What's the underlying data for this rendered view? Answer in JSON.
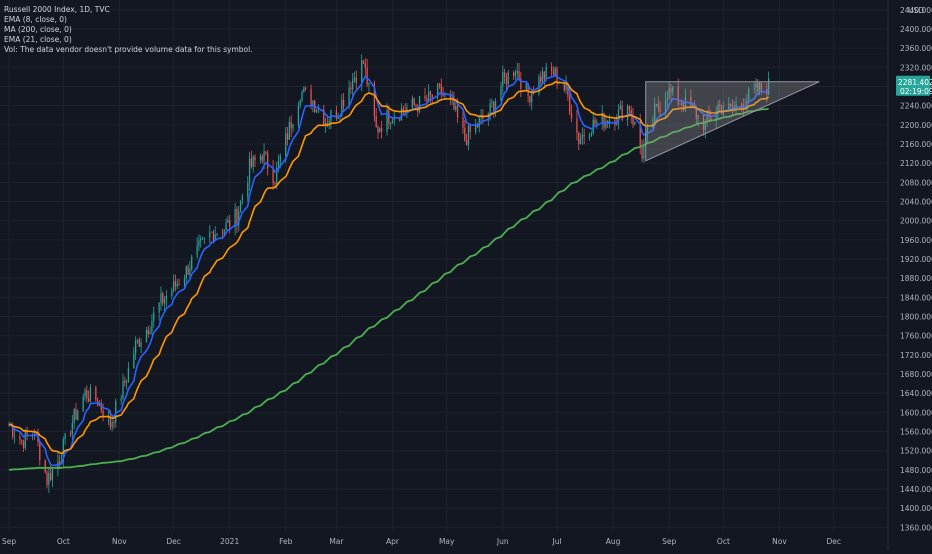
{
  "header": {
    "symbol": "Russell 2000 Index, 1D, TVC",
    "indicators": [
      "EMA (8, close, 0)",
      "MA (200, close, 0)",
      "EMA (21, close, 0)"
    ],
    "volume_note": "Vol: The data vendor doesn't provide volume data for this symbol."
  },
  "colors": {
    "background": "#131722",
    "grid": "#1e222d",
    "axis_text": "#b2b5be",
    "up_candle": "#26a69a",
    "down_candle": "#ef5350",
    "ema8": "#2962ff",
    "ma200": "#4caf50",
    "ema21": "#ff9800",
    "triangle_fill": "rgba(150,150,150,0.35)",
    "triangle_stroke": "#9598a1",
    "price_tag": "#26a69a"
  },
  "chart_data": {
    "type": "candlestick",
    "title": "Russell 2000 Index, 1D, TVC",
    "currency_label": "USD",
    "ylim": [
      1340,
      2450
    ],
    "y_ticks": [
      "2440.0000",
      "2400.0000",
      "2360.0000",
      "2320.0000",
      "2280.0000",
      "2240.0000",
      "2200.0000",
      "2160.0000",
      "2120.0000",
      "2080.0000",
      "2040.0000",
      "2000.0000",
      "1960.0000",
      "1920.0000",
      "1880.0000",
      "1840.0000",
      "1800.0000",
      "1760.0000",
      "1720.0000",
      "1680.0000",
      "1640.0000",
      "1600.0000",
      "1560.0000",
      "1520.0000",
      "1480.0000",
      "1440.0000",
      "1400.0000",
      "1360.0000"
    ],
    "x_ticks": [
      "Sep",
      "Oct",
      "Nov",
      "Dec",
      "2021",
      "Feb",
      "Mar",
      "Apr",
      "May",
      "Jun",
      "Jul",
      "Aug",
      "Sep",
      "Oct",
      "Nov",
      "Dec"
    ],
    "last_price": "2281.4022",
    "countdown": "02:19:09",
    "close_series": [
      {
        "x": "2020-09-01",
        "y": 1575
      },
      {
        "x": "2020-09-08",
        "y": 1540
      },
      {
        "x": "2020-09-15",
        "y": 1560
      },
      {
        "x": "2020-09-22",
        "y": 1460
      },
      {
        "x": "2020-09-29",
        "y": 1505
      },
      {
        "x": "2020-10-06",
        "y": 1580
      },
      {
        "x": "2020-10-13",
        "y": 1640
      },
      {
        "x": "2020-10-20",
        "y": 1625
      },
      {
        "x": "2020-10-27",
        "y": 1575
      },
      {
        "x": "2020-11-03",
        "y": 1650
      },
      {
        "x": "2020-11-10",
        "y": 1740
      },
      {
        "x": "2020-11-17",
        "y": 1780
      },
      {
        "x": "2020-11-24",
        "y": 1830
      },
      {
        "x": "2020-12-01",
        "y": 1860
      },
      {
        "x": "2020-12-08",
        "y": 1895
      },
      {
        "x": "2020-12-15",
        "y": 1940
      },
      {
        "x": "2020-12-22",
        "y": 1975
      },
      {
        "x": "2020-12-29",
        "y": 1985
      },
      {
        "x": "2021-01-05",
        "y": 2010
      },
      {
        "x": "2021-01-12",
        "y": 2110
      },
      {
        "x": "2021-01-19",
        "y": 2140
      },
      {
        "x": "2021-01-26",
        "y": 2090
      },
      {
        "x": "2021-02-02",
        "y": 2180
      },
      {
        "x": "2021-02-09",
        "y": 2270
      },
      {
        "x": "2021-02-16",
        "y": 2250
      },
      {
        "x": "2021-02-23",
        "y": 2210
      },
      {
        "x": "2021-03-02",
        "y": 2230
      },
      {
        "x": "2021-03-09",
        "y": 2290
      },
      {
        "x": "2021-03-16",
        "y": 2330
      },
      {
        "x": "2021-03-23",
        "y": 2190
      },
      {
        "x": "2021-03-30",
        "y": 2220
      },
      {
        "x": "2021-04-06",
        "y": 2230
      },
      {
        "x": "2021-04-13",
        "y": 2240
      },
      {
        "x": "2021-04-20",
        "y": 2250
      },
      {
        "x": "2021-04-27",
        "y": 2270
      },
      {
        "x": "2021-05-04",
        "y": 2240
      },
      {
        "x": "2021-05-11",
        "y": 2170
      },
      {
        "x": "2021-05-18",
        "y": 2200
      },
      {
        "x": "2021-05-25",
        "y": 2230
      },
      {
        "x": "2021-06-01",
        "y": 2290
      },
      {
        "x": "2021-06-08",
        "y": 2320
      },
      {
        "x": "2021-06-15",
        "y": 2260
      },
      {
        "x": "2021-06-22",
        "y": 2300
      },
      {
        "x": "2021-06-29",
        "y": 2310
      },
      {
        "x": "2021-07-06",
        "y": 2270
      },
      {
        "x": "2021-07-13",
        "y": 2170
      },
      {
        "x": "2021-07-20",
        "y": 2200
      },
      {
        "x": "2021-07-27",
        "y": 2210
      },
      {
        "x": "2021-08-03",
        "y": 2220
      },
      {
        "x": "2021-08-10",
        "y": 2240
      },
      {
        "x": "2021-08-17",
        "y": 2140
      },
      {
        "x": "2021-08-24",
        "y": 2225
      },
      {
        "x": "2021-08-31",
        "y": 2270
      },
      {
        "x": "2021-09-07",
        "y": 2250
      },
      {
        "x": "2021-09-14",
        "y": 2230
      },
      {
        "x": "2021-09-21",
        "y": 2200
      },
      {
        "x": "2021-09-28",
        "y": 2240
      },
      {
        "x": "2021-10-05",
        "y": 2230
      },
      {
        "x": "2021-10-12",
        "y": 2250
      },
      {
        "x": "2021-10-19",
        "y": 2270
      },
      {
        "x": "2021-10-26",
        "y": 2281
      }
    ],
    "triangle": [
      {
        "x": "2021-08-19",
        "y": 2290
      },
      {
        "x": "2021-11-23",
        "y": 2290
      },
      {
        "x": "2021-08-19",
        "y": 2125
      }
    ]
  }
}
